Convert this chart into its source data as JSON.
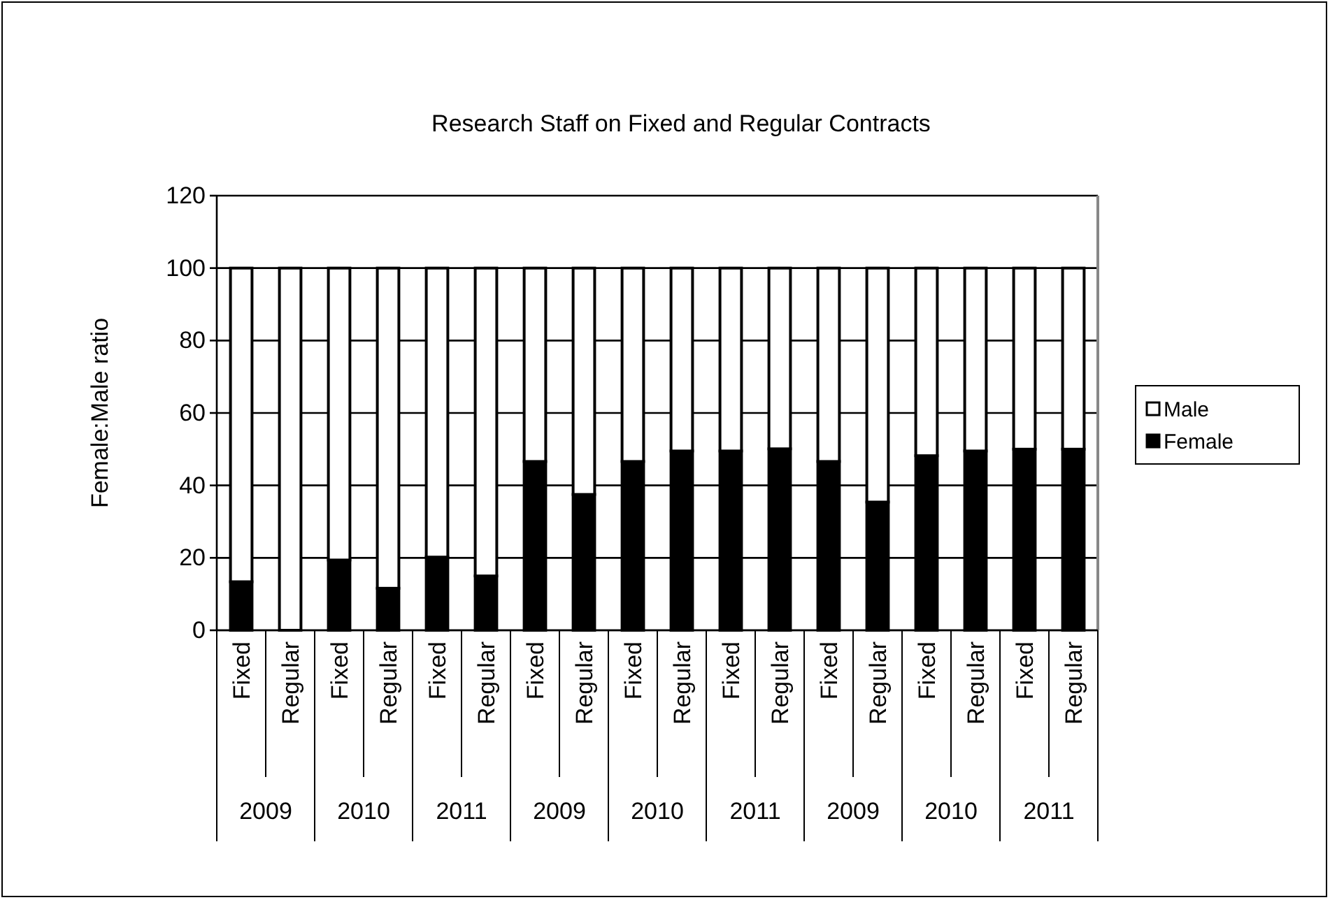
{
  "chart_data": {
    "type": "bar",
    "title": "Research Staff on Fixed and Regular Contracts",
    "ylabel": "Female:Male ratio",
    "categories": [
      "Fixed",
      "Regular",
      "Fixed",
      "Regular",
      "Fixed",
      "Regular",
      "Fixed",
      "Regular",
      "Fixed",
      "Regular",
      "Fixed",
      "Regular",
      "Fixed",
      "Regular",
      "Fixed",
      "Regular",
      "Fixed",
      "Regular"
    ],
    "annotations": [
      "2009",
      "2010",
      "2011",
      "2009",
      "2010",
      "2011",
      "2009",
      "2010",
      "2011"
    ],
    "stacked": true,
    "series": [
      {
        "name": "Female",
        "color": "#000000",
        "values": [
          13.4,
          0,
          19.4,
          11.6,
          20.2,
          15,
          46.6,
          37.5,
          46.6,
          49.5,
          49.5,
          50.1,
          46.6,
          35.4,
          48.2,
          49.5,
          50,
          50
        ]
      },
      {
        "name": "Male",
        "color": "#ffffff",
        "values": [
          86.6,
          100,
          80.6,
          88.4,
          79.8,
          85,
          53.4,
          62.5,
          53.4,
          50.5,
          50.5,
          49.9,
          53.4,
          64.6,
          51.8,
          50.5,
          50,
          50
        ]
      }
    ],
    "ylim": [
      0,
      120
    ],
    "yticks": [
      0,
      20,
      40,
      60,
      80,
      100,
      120
    ],
    "grid": "y",
    "legend": "right"
  }
}
